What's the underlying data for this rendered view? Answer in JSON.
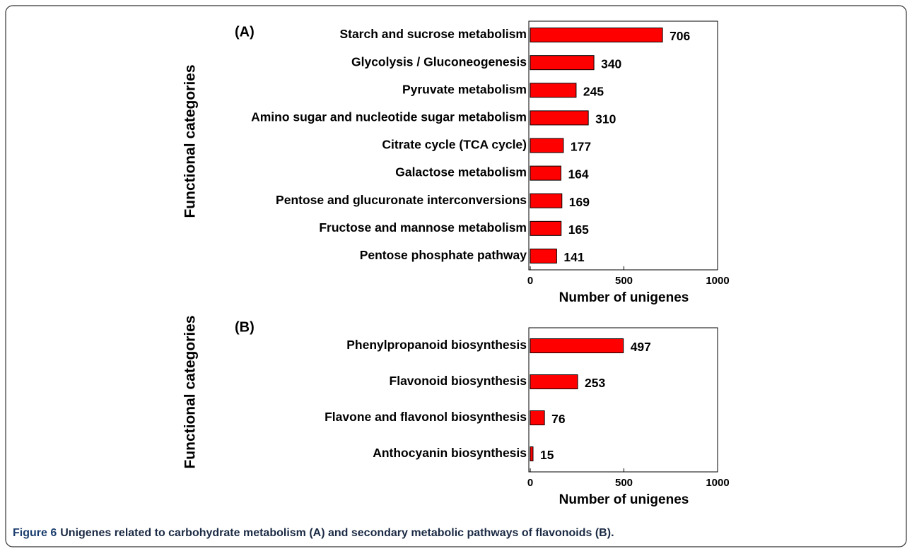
{
  "caption": {
    "label": "Figure 6",
    "text": "Unigenes related to carbohydrate metabolism (A) and secondary metabolic pathways of flavonoids (B)."
  },
  "chart_data": [
    {
      "type": "bar",
      "orientation": "horizontal",
      "annotation": "(A)",
      "xlabel": "Number of unigenes",
      "ylabel": "Functional categories",
      "categories": [
        "Starch and sucrose metabolism",
        "Glycolysis / Gluconeogenesis",
        "Pyruvate metabolism",
        "Amino sugar and nucleotide sugar metabolism",
        "Citrate cycle (TCA cycle)",
        "Galactose metabolism",
        "Pentose and glucuronate interconversions",
        "Fructose and mannose metabolism",
        "Pentose phosphate pathway"
      ],
      "values": [
        706,
        340,
        245,
        310,
        177,
        164,
        169,
        165,
        141
      ],
      "color": "#ff0000",
      "xlim": [
        0,
        1000
      ],
      "xticks": [
        0,
        500,
        1000
      ]
    },
    {
      "type": "bar",
      "orientation": "horizontal",
      "annotation": "(B)",
      "xlabel": "Number of unigenes",
      "ylabel": "Functional categories",
      "categories": [
        "Phenylpropanoid biosynthesis",
        "Flavonoid biosynthesis",
        "Flavone and flavonol biosynthesis",
        "Anthocyanin biosynthesis"
      ],
      "values": [
        497,
        253,
        76,
        15
      ],
      "color": "#ff0000",
      "xlim": [
        0,
        1000
      ],
      "xticks": [
        0,
        500,
        1000
      ]
    }
  ]
}
